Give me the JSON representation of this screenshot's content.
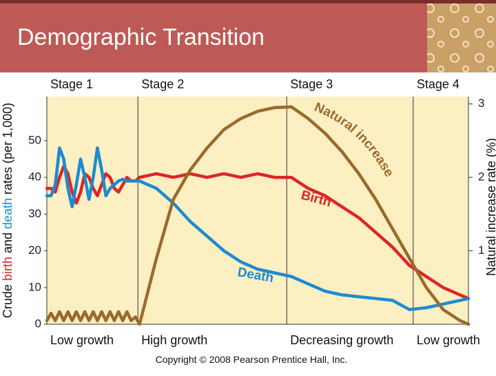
{
  "chart_data": {
    "type": "line",
    "title": "Demographic Transition",
    "y_label_parts": [
      "Crude ",
      "birth",
      " and ",
      "death",
      " rates (per 1,000)"
    ],
    "y2_label": "Natural increase rate (%)",
    "stages": [
      "Stage 1",
      "Stage 2",
      "Stage 3",
      "Stage 4"
    ],
    "growth_labels": [
      "Low growth",
      "High growth",
      "Decreasing growth",
      "Low growth"
    ],
    "stage_boundaries": [
      21.6,
      56.9,
      86.9
    ],
    "annotations": [
      "Natural increase",
      "Birth",
      "Death"
    ],
    "footer": "Copyright © 2008 Pearson Prentice Hall, Inc.",
    "xlim": [
      0,
      100
    ],
    "ylim": [
      0,
      62
    ],
    "yticks": [
      0,
      10,
      20,
      30,
      40,
      50
    ],
    "y2lim": [
      0,
      3.1
    ],
    "y2ticks": [
      1,
      2,
      3
    ],
    "x": [
      0,
      1,
      2,
      3,
      4,
      5,
      6,
      7,
      8,
      9,
      10,
      11,
      12,
      13,
      14,
      15,
      16,
      17,
      18,
      19,
      20,
      21,
      22,
      26,
      30,
      34,
      38,
      42,
      46,
      50,
      54,
      58,
      62,
      66,
      70,
      74,
      78,
      82,
      86,
      90,
      94,
      98,
      100
    ],
    "series": [
      {
        "name": "Birth",
        "color": "#e02424",
        "values": [
          37,
          37,
          36,
          40,
          43,
          41,
          36,
          33,
          36,
          41,
          40,
          37,
          35,
          38,
          41,
          40,
          37,
          36,
          38,
          40,
          39,
          39,
          40,
          41,
          40,
          41,
          40,
          41,
          40,
          41,
          40,
          40,
          37,
          35,
          32,
          29,
          25,
          21,
          16,
          13,
          10,
          8,
          7
        ]
      },
      {
        "name": "Death",
        "color": "#1b8bd2",
        "values": [
          35,
          35,
          38,
          48,
          45,
          37,
          32,
          38,
          45,
          40,
          34,
          40,
          48,
          42,
          35,
          37,
          38,
          39,
          39.5,
          39,
          39,
          39,
          39,
          37,
          33,
          28,
          24,
          20,
          17,
          15,
          14,
          13,
          11,
          9,
          8,
          7.5,
          7,
          6.5,
          4,
          4.5,
          5.5,
          6.5,
          7
        ]
      },
      {
        "name": "Natural increase",
        "color": "#9a6a2a",
        "axis": "y2",
        "values": [
          0.05,
          0.15,
          0.05,
          0.17,
          0.05,
          0.17,
          0.05,
          0.17,
          0.05,
          0.17,
          0.05,
          0.17,
          0.05,
          0.17,
          0.05,
          0.17,
          0.05,
          0.17,
          0.05,
          0.17,
          0.05,
          0.1,
          0.0,
          0.9,
          1.7,
          2.1,
          2.4,
          2.65,
          2.8,
          2.9,
          2.95,
          2.96,
          2.8,
          2.6,
          2.35,
          2.05,
          1.7,
          1.3,
          0.9,
          0.5,
          0.2,
          0.05,
          0.0
        ]
      }
    ]
  }
}
